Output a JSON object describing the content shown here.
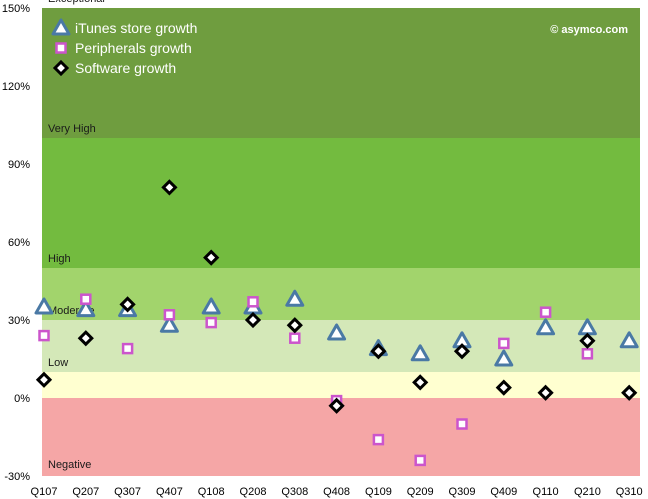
{
  "chart_data": {
    "type": "scatter",
    "title": "",
    "xlabel": "",
    "ylabel": "",
    "credit": "© asymco.com",
    "categories": [
      "Q107",
      "Q207",
      "Q307",
      "Q407",
      "Q108",
      "Q208",
      "Q308",
      "Q408",
      "Q109",
      "Q209",
      "Q309",
      "Q409",
      "Q110",
      "Q210",
      "Q310"
    ],
    "ylim": [
      -30,
      150
    ],
    "yticks": [
      -30,
      0,
      30,
      60,
      90,
      120,
      150
    ],
    "ytick_labels": [
      "-30%",
      "0%",
      "30%",
      "60%",
      "90%",
      "120%",
      "150%"
    ],
    "legend_position": "top-left",
    "bands": [
      {
        "label": "Negative",
        "from": -30,
        "to": 0,
        "color": "#f5a6a6"
      },
      {
        "label": "Low",
        "from": 0,
        "to": 10,
        "color": "#ffffd0"
      },
      {
        "label": "Moderate",
        "from": 10,
        "to": 30,
        "color": "#d4e8b8"
      },
      {
        "label": "High",
        "from": 30,
        "to": 50,
        "color": "#a2d46c"
      },
      {
        "label": "Very High",
        "from": 50,
        "to": 100,
        "color": "#73bb3f"
      },
      {
        "label": "Exceptional",
        "from": 100,
        "to": 150,
        "color": "#6f9d3f"
      }
    ],
    "series": [
      {
        "name": "iTunes store growth",
        "marker": "triangle",
        "color": "#4a79a5",
        "values": [
          35,
          34,
          34,
          28,
          35,
          35,
          38,
          25,
          19,
          17,
          22,
          15,
          27,
          27,
          22
        ]
      },
      {
        "name": "Peripherals growth",
        "marker": "square",
        "color": "#cc55cc",
        "values": [
          24,
          38,
          19,
          32,
          29,
          37,
          23,
          -1,
          -16,
          -24,
          -10,
          21,
          33,
          17,
          null
        ]
      },
      {
        "name": "Software growth",
        "marker": "diamond",
        "color": "#000000",
        "values": [
          7,
          23,
          36,
          81,
          54,
          30,
          28,
          -3,
          18,
          6,
          18,
          4,
          2,
          22,
          2
        ]
      }
    ]
  }
}
